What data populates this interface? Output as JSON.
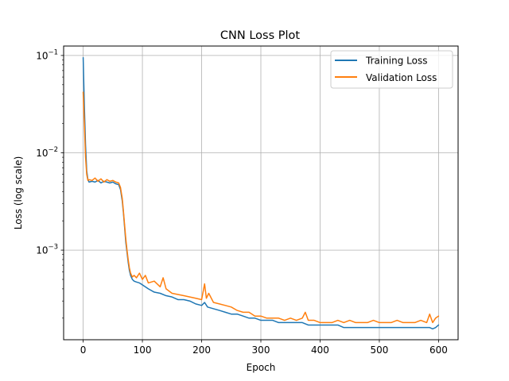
{
  "chart_data": {
    "type": "line",
    "title": "CNN Loss Plot",
    "xlabel": "Epoch",
    "ylabel": "Loss (log scale)",
    "yscale": "log",
    "grid": true,
    "legend_position": "top-right",
    "xlim": [
      -33,
      633
    ],
    "ylim": [
      0.00012,
      0.125
    ],
    "x_ticks": [
      0,
      100,
      200,
      300,
      400,
      500,
      600
    ],
    "x_tick_labels": [
      "0",
      "100",
      "200",
      "300",
      "400",
      "500",
      "600"
    ],
    "y_ticks": [
      0.001,
      0.01,
      0.1
    ],
    "y_tick_labels": [
      {
        "base": "10",
        "exp": "−3"
      },
      {
        "base": "10",
        "exp": "−2"
      },
      {
        "base": "10",
        "exp": "−1"
      }
    ],
    "series": [
      {
        "name": "Training Loss",
        "color": "#1f77b4",
        "x": [
          0,
          2,
          4,
          6,
          8,
          10,
          15,
          20,
          25,
          30,
          35,
          40,
          45,
          50,
          55,
          60,
          63,
          66,
          68,
          70,
          72,
          74,
          76,
          78,
          80,
          83,
          86,
          90,
          95,
          100,
          110,
          120,
          130,
          140,
          150,
          160,
          170,
          180,
          190,
          200,
          205,
          210,
          220,
          230,
          240,
          250,
          260,
          270,
          280,
          290,
          300,
          310,
          320,
          330,
          340,
          350,
          360,
          370,
          380,
          390,
          400,
          410,
          420,
          430,
          440,
          450,
          460,
          470,
          480,
          490,
          500,
          510,
          520,
          530,
          540,
          550,
          560,
          570,
          580,
          585,
          590,
          595,
          600
        ],
        "y": [
          0.095,
          0.03,
          0.012,
          0.0065,
          0.0053,
          0.005,
          0.0051,
          0.005,
          0.0052,
          0.0049,
          0.0051,
          0.005,
          0.0049,
          0.005,
          0.0048,
          0.0047,
          0.0042,
          0.0032,
          0.0024,
          0.0017,
          0.0012,
          0.00095,
          0.00075,
          0.00062,
          0.00055,
          0.0005,
          0.00048,
          0.00047,
          0.00046,
          0.00044,
          0.0004,
          0.00037,
          0.00036,
          0.00034,
          0.00033,
          0.00031,
          0.00031,
          0.0003,
          0.00028,
          0.00027,
          0.00029,
          0.00026,
          0.00025,
          0.00024,
          0.00023,
          0.00022,
          0.00022,
          0.00021,
          0.0002,
          0.0002,
          0.00019,
          0.00019,
          0.00019,
          0.00018,
          0.00018,
          0.00018,
          0.00018,
          0.00018,
          0.00017,
          0.00017,
          0.00017,
          0.00017,
          0.00017,
          0.00017,
          0.00016,
          0.00016,
          0.00016,
          0.00016,
          0.00016,
          0.00016,
          0.00016,
          0.00016,
          0.00016,
          0.00016,
          0.00016,
          0.00016,
          0.00016,
          0.00016,
          0.00016,
          0.00016,
          0.000155,
          0.00016,
          0.00017
        ]
      },
      {
        "name": "Validation Loss",
        "color": "#ff7f0e",
        "x": [
          0,
          2,
          4,
          6,
          8,
          10,
          15,
          20,
          25,
          30,
          35,
          40,
          45,
          50,
          55,
          60,
          63,
          66,
          68,
          70,
          72,
          74,
          76,
          78,
          80,
          83,
          86,
          90,
          95,
          100,
          105,
          110,
          120,
          130,
          135,
          140,
          150,
          160,
          170,
          180,
          190,
          200,
          205,
          208,
          212,
          220,
          230,
          240,
          250,
          260,
          270,
          280,
          290,
          300,
          310,
          320,
          330,
          340,
          350,
          360,
          370,
          375,
          380,
          390,
          400,
          410,
          420,
          430,
          440,
          450,
          460,
          470,
          480,
          490,
          500,
          510,
          520,
          530,
          540,
          550,
          560,
          570,
          580,
          585,
          590,
          595,
          600
        ],
        "y": [
          0.042,
          0.02,
          0.009,
          0.006,
          0.0052,
          0.0053,
          0.0052,
          0.0055,
          0.0051,
          0.0054,
          0.005,
          0.0053,
          0.0051,
          0.0052,
          0.005,
          0.0049,
          0.0044,
          0.0034,
          0.0025,
          0.0018,
          0.0013,
          0.001,
          0.0008,
          0.00066,
          0.00058,
          0.00053,
          0.00055,
          0.00052,
          0.00058,
          0.0005,
          0.00055,
          0.00046,
          0.00048,
          0.00042,
          0.00052,
          0.0004,
          0.00036,
          0.00035,
          0.00034,
          0.00033,
          0.00032,
          0.00031,
          0.00045,
          0.00032,
          0.00036,
          0.00029,
          0.00028,
          0.00027,
          0.00026,
          0.00024,
          0.00023,
          0.00023,
          0.00021,
          0.00021,
          0.0002,
          0.0002,
          0.0002,
          0.00019,
          0.0002,
          0.00019,
          0.0002,
          0.00023,
          0.00019,
          0.00019,
          0.00018,
          0.00018,
          0.00018,
          0.00019,
          0.00018,
          0.00019,
          0.00018,
          0.00018,
          0.00018,
          0.00019,
          0.00018,
          0.00018,
          0.00018,
          0.00019,
          0.00018,
          0.00018,
          0.00018,
          0.00019,
          0.00018,
          0.00022,
          0.00018,
          0.0002,
          0.00021
        ]
      }
    ]
  }
}
